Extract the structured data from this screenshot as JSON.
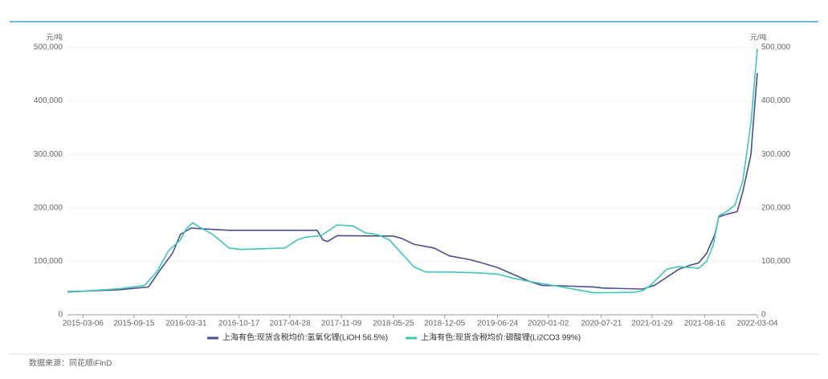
{
  "chart_data": {
    "type": "line",
    "y_unit": "元/吨",
    "y2_unit": "元/吨",
    "source": "数据来源：同花顺iFinD",
    "xlim": [
      "2015-01-06",
      "2022-03-04"
    ],
    "xticks": [
      "2015-03-06",
      "2015-09-15",
      "2016-03-31",
      "2016-10-17",
      "2017-04-28",
      "2017-11-09",
      "2018-05-25",
      "2018-12-05",
      "2019-06-24",
      "2020-01-02",
      "2020-07-21",
      "2021-01-29",
      "2021-08-16",
      "2022-03-04"
    ],
    "ylim": [
      0,
      500000
    ],
    "yticks": [
      0,
      {
        "value": 100000,
        "label": "100,000"
      },
      {
        "value": 200000,
        "label": "200,000"
      },
      {
        "value": 300000,
        "label": "300,000"
      },
      {
        "value": 400000,
        "label": "400,000"
      },
      {
        "value": 500000,
        "label": "500,000"
      }
    ],
    "y2lim": [
      0,
      500000
    ],
    "y2ticks": [
      0,
      {
        "value": 100000,
        "label": "100,000"
      },
      {
        "value": 200000,
        "label": "200,000"
      },
      {
        "value": 300000,
        "label": "300,000"
      },
      {
        "value": 400000,
        "label": "400,000"
      },
      {
        "value": 500000,
        "label": "500,000"
      }
    ],
    "grid": true,
    "legend": "bottom",
    "series": [
      {
        "name": "上海有色:现货含税均价:氢氧化锂(LiOH 56.5%)",
        "color": "#4b4f8c",
        "x": [
          "2015-01-06",
          "2015-07-26",
          "2015-11-09",
          "2015-12-25",
          "2016-02-08",
          "2016-03-09",
          "2016-04-18",
          "2016-09-09",
          "2017-08-09",
          "2017-08-31",
          "2017-09-18",
          "2017-10-24",
          "2018-05-25",
          "2018-06-25",
          "2018-08-10",
          "2018-10-25",
          "2018-12-24",
          "2019-03-11",
          "2019-04-25",
          "2019-06-25",
          "2019-08-25",
          "2019-10-25",
          "2019-12-09",
          "2020-02-24",
          "2020-06-24",
          "2020-07-25",
          "2020-12-24",
          "2021-02-07",
          "2021-03-25",
          "2021-05-10",
          "2021-06-24",
          "2021-07-25",
          "2021-08-24",
          "2021-09-24",
          "2021-10-09",
          "2021-11-08",
          "2021-12-18",
          "2022-01-08",
          "2022-02-08",
          "2022-02-17",
          "2022-03-04"
        ],
        "values": [
          43000,
          47000,
          52000,
          85000,
          115000,
          150000,
          162000,
          158000,
          158000,
          140000,
          137000,
          148000,
          147000,
          143000,
          132000,
          125000,
          110000,
          103000,
          97000,
          88000,
          75000,
          62000,
          55000,
          54000,
          52000,
          50000,
          48000,
          55000,
          70000,
          85000,
          93000,
          97000,
          115000,
          150000,
          183000,
          188000,
          193000,
          230000,
          300000,
          360000,
          452000
        ]
      },
      {
        "name": "上海有色:现货含税均价:碳酸锂(Li2CO3 99%)",
        "color": "#3ec6b8",
        "x": [
          "2015-01-06",
          "2015-07-26",
          "2015-10-25",
          "2015-12-10",
          "2016-01-24",
          "2016-03-09",
          "2016-03-30",
          "2016-04-24",
          "2016-05-24",
          "2016-07-10",
          "2016-09-09",
          "2016-10-24",
          "2017-04-10",
          "2017-05-25",
          "2017-06-25",
          "2017-08-25",
          "2017-10-24",
          "2017-12-24",
          "2018-02-08",
          "2018-03-26",
          "2018-05-10",
          "2018-06-25",
          "2018-08-10",
          "2018-09-24",
          "2018-12-24",
          "2019-04-25",
          "2019-06-25",
          "2019-08-25",
          "2019-10-25",
          "2019-12-25",
          "2020-02-24",
          "2020-06-24",
          "2020-11-23",
          "2020-12-24",
          "2021-01-23",
          "2021-02-23",
          "2021-03-25",
          "2021-05-10",
          "2021-07-25",
          "2021-08-24",
          "2021-09-18",
          "2021-10-09",
          "2021-11-08",
          "2021-12-09",
          "2022-01-08",
          "2022-02-08",
          "2022-03-04"
        ],
        "values": [
          42000,
          49000,
          55000,
          80000,
          120000,
          140000,
          160000,
          172000,
          163000,
          150000,
          125000,
          122000,
          125000,
          140000,
          145000,
          148000,
          168000,
          166000,
          153000,
          150000,
          140000,
          115000,
          90000,
          80000,
          80000,
          78000,
          76000,
          68000,
          62000,
          57000,
          52000,
          41000,
          42000,
          45000,
          55000,
          70000,
          85000,
          90000,
          87000,
          100000,
          130000,
          185000,
          193000,
          205000,
          250000,
          360000,
          497000
        ]
      }
    ]
  }
}
